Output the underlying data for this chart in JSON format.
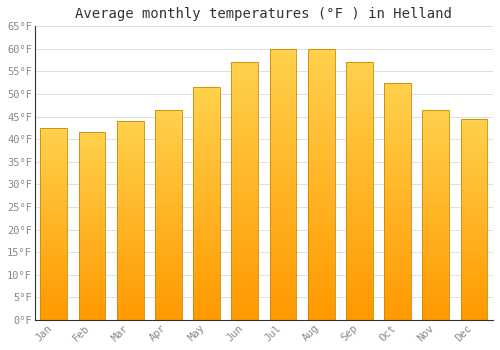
{
  "months": [
    "Jan",
    "Feb",
    "Mar",
    "Apr",
    "May",
    "Jun",
    "Jul",
    "Aug",
    "Sep",
    "Oct",
    "Nov",
    "Dec"
  ],
  "values": [
    42.5,
    41.5,
    44.0,
    46.5,
    51.5,
    57.0,
    60.0,
    60.0,
    57.0,
    52.5,
    46.5,
    44.5
  ],
  "title": "Average monthly temperatures (°F ) in Helland",
  "ylim": [
    0,
    65
  ],
  "yticks": [
    0,
    5,
    10,
    15,
    20,
    25,
    30,
    35,
    40,
    45,
    50,
    55,
    60,
    65
  ],
  "bar_color_bottom": "#FFA500",
  "bar_color_top": "#FFD966",
  "bar_edge_color": "#CC8800",
  "background_color": "#FFFFFF",
  "grid_color": "#E0E0E0",
  "title_fontsize": 10,
  "tick_fontsize": 7.5,
  "tick_color": "#888888",
  "font_family": "monospace",
  "bar_width": 0.7
}
